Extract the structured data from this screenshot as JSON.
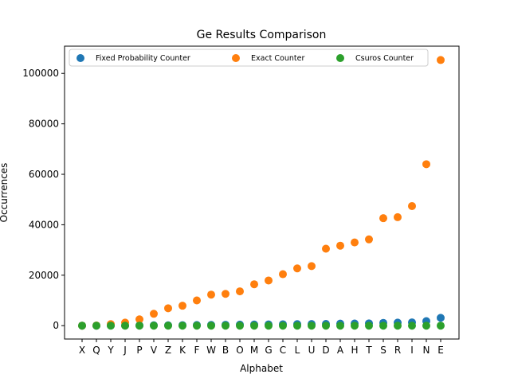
{
  "chart_data": {
    "type": "scatter",
    "title": "Ge Results Comparison",
    "xlabel": "Alphabet",
    "ylabel": "Occurrences",
    "ylim": [
      -5300,
      110800
    ],
    "yticks": [
      0,
      20000,
      40000,
      60000,
      80000,
      100000
    ],
    "ytick_labels": [
      "0",
      "20000",
      "40000",
      "60000",
      "80000",
      "100000"
    ],
    "grid": false,
    "legend_position": "top",
    "categories": [
      "X",
      "Q",
      "Y",
      "J",
      "P",
      "V",
      "Z",
      "K",
      "F",
      "W",
      "B",
      "O",
      "M",
      "G",
      "C",
      "L",
      "U",
      "D",
      "A",
      "H",
      "T",
      "S",
      "R",
      "I",
      "N",
      "E"
    ],
    "series": [
      {
        "name": "Fixed Probability Counter",
        "color": "#1f77b4",
        "values": [
          0,
          0,
          50,
          50,
          100,
          150,
          150,
          200,
          250,
          300,
          350,
          400,
          450,
          500,
          550,
          600,
          650,
          700,
          800,
          850,
          900,
          1100,
          1200,
          1300,
          1800,
          3100
        ]
      },
      {
        "name": "Exact Counter",
        "color": "#ff7f0e",
        "values": [
          0,
          50,
          600,
          1200,
          2500,
          4700,
          6900,
          7900,
          10000,
          12300,
          12600,
          13600,
          16400,
          17900,
          20400,
          22700,
          23600,
          30500,
          31700,
          33000,
          34200,
          42600,
          43000,
          47400,
          64000,
          105300
        ]
      },
      {
        "name": "Csuros Counter",
        "color": "#2ca02c",
        "values": [
          0,
          0,
          0,
          0,
          0,
          0,
          0,
          0,
          0,
          0,
          0,
          0,
          0,
          0,
          0,
          0,
          0,
          0,
          0,
          0,
          0,
          0,
          0,
          0,
          0,
          0
        ]
      }
    ]
  }
}
